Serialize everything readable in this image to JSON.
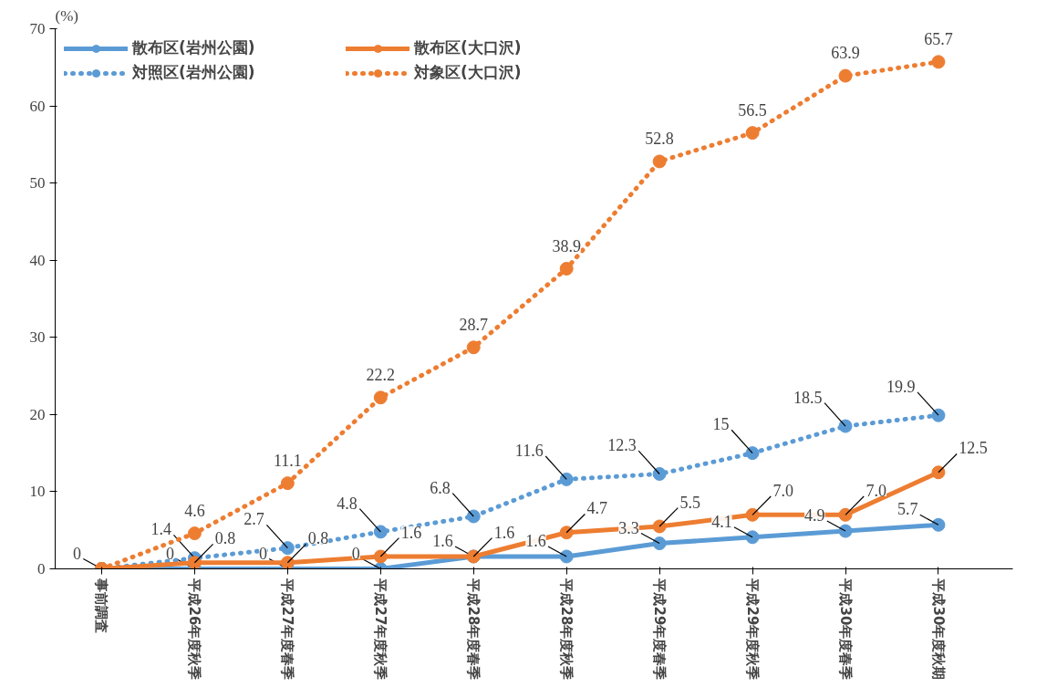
{
  "chart_data": {
    "type": "line",
    "ylabel": "(%)",
    "categories": [
      "事前調査",
      "平成26年度秋季",
      "平成27年度春季",
      "平成27年度秋季",
      "平成28年度春季",
      "平成28年度秋季",
      "平成29年度春季",
      "平成29年度秋季",
      "平成30年度春季",
      "平成30年度秋期"
    ],
    "series": [
      {
        "name": "散布区(岩州公園)",
        "color": "#5b9bd5",
        "line_style": "solid",
        "values": [
          0,
          0,
          0,
          0,
          1.6,
          1.6,
          3.3,
          4.1,
          4.9,
          5.7
        ]
      },
      {
        "name": "対照区(岩州公園)",
        "color": "#5b9bd5",
        "line_style": "dotted",
        "values": [
          0,
          1.4,
          2.7,
          4.8,
          6.8,
          11.6,
          12.3,
          15,
          18.5,
          19.9
        ],
        "value_labels": [
          null,
          "1.4",
          "2.7",
          "4.8",
          "6.8",
          "11.6",
          "12.3",
          "15",
          "18.5",
          "19.9"
        ]
      },
      {
        "name": "散布区(大口沢)",
        "color": "#ed7d31",
        "line_style": "solid",
        "values": [
          0,
          0.8,
          0.8,
          1.6,
          1.6,
          4.7,
          5.5,
          7.0,
          7.0,
          12.5
        ],
        "value_labels": [
          null,
          "0.8",
          "0.8",
          "1.6",
          "1.6",
          "4.7",
          "5.5",
          "7.0",
          "7.0",
          "12.5"
        ]
      },
      {
        "name": "対象区(大口沢)",
        "color": "#ed7d31",
        "line_style": "dotted",
        "values": [
          0,
          4.6,
          11.1,
          22.2,
          28.7,
          38.9,
          52.8,
          56.5,
          63.9,
          65.7
        ],
        "value_labels": [
          null,
          "4.6",
          "11.1",
          "22.2",
          "28.7",
          "38.9",
          "52.8",
          "56.5",
          "63.9",
          "65.7"
        ]
      }
    ],
    "ylim": [
      0,
      70
    ],
    "yticks": [
      0,
      10,
      20,
      30,
      40,
      50,
      60,
      70
    ],
    "grid": false,
    "legend": "top left",
    "marker": "circle",
    "data_labels": true
  }
}
